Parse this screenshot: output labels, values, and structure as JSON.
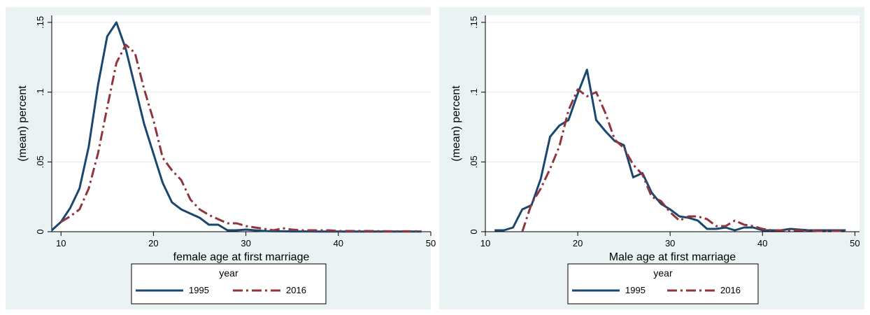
{
  "chart_data": [
    {
      "type": "line",
      "xlabel": "female age at first marriage",
      "ylabel": "(mean) percent",
      "xlim": [
        9,
        50
      ],
      "ylim": [
        0,
        0.155
      ],
      "xticks": [
        10,
        20,
        30,
        40,
        50
      ],
      "xtick_labels": [
        "10",
        "20",
        "30",
        "40",
        "50"
      ],
      "yticks": [
        0,
        0.05,
        0.1,
        0.15
      ],
      "ytick_labels": [
        "0",
        ".05",
        ".1",
        ".15"
      ],
      "grid": true,
      "legend": {
        "title": "year",
        "placement": "bottom"
      },
      "series": [
        {
          "name": "1995",
          "color": "#1a476f",
          "dash": "solid",
          "x": [
            9,
            10,
            11,
            12,
            13,
            14,
            15,
            16,
            17,
            18,
            19,
            20,
            21,
            22,
            23,
            24,
            25,
            26,
            27,
            28,
            29,
            30,
            31,
            32,
            33,
            34,
            35,
            36,
            37,
            38,
            39,
            40,
            41,
            42,
            43,
            44,
            45,
            46,
            47,
            48,
            49
          ],
          "y": [
            0.001,
            0.007,
            0.017,
            0.031,
            0.061,
            0.105,
            0.14,
            0.15,
            0.131,
            0.104,
            0.077,
            0.056,
            0.035,
            0.021,
            0.016,
            0.013,
            0.01,
            0.005,
            0.005,
            0.001,
            0.001,
            0.0015,
            0.001,
            0.0005,
            0.0003,
            0.0003,
            0.0002,
            0.0002,
            0.0002,
            0.0001,
            0.0001,
            0.0001,
            0.0001,
            0.0001,
            0.0001,
            0.0001,
            0.0001,
            0.0001,
            0.0001,
            0.0001,
            0.0001
          ]
        },
        {
          "name": "2016",
          "color": "#90353b",
          "dash": "dash-dot",
          "x": [
            10,
            11,
            12,
            13,
            14,
            15,
            16,
            17,
            18,
            19,
            20,
            21,
            22,
            23,
            24,
            25,
            26,
            27,
            28,
            29,
            30,
            31,
            32,
            33,
            34,
            35,
            36,
            37,
            38,
            39,
            40,
            41,
            42,
            43,
            44,
            45,
            46,
            47,
            48,
            49
          ],
          "y": [
            0.007,
            0.011,
            0.016,
            0.031,
            0.056,
            0.089,
            0.121,
            0.134,
            0.128,
            0.102,
            0.08,
            0.053,
            0.044,
            0.037,
            0.023,
            0.016,
            0.012,
            0.009,
            0.006,
            0.006,
            0.004,
            0.003,
            0.002,
            0.001,
            0.0025,
            0.0015,
            0.001,
            0.001,
            0.001,
            0.001,
            0.0005,
            0.0005,
            0.0005,
            0.0005,
            0.0004,
            0.0004,
            0.0003,
            0.0003,
            0.0003,
            0.0003
          ]
        }
      ]
    },
    {
      "type": "line",
      "xlabel": "Male age at first marriage",
      "ylabel": "(mean) percent",
      "xlim": [
        10,
        50.5
      ],
      "ylim": [
        0,
        0.155
      ],
      "xticks": [
        10,
        20,
        30,
        40,
        50
      ],
      "xtick_labels": [
        "10",
        "20",
        "30",
        "40",
        "50"
      ],
      "yticks": [
        0,
        0.05,
        0.1,
        0.15
      ],
      "ytick_labels": [
        "0",
        ".05",
        ".1",
        ".15"
      ],
      "grid": true,
      "legend": {
        "title": "year",
        "placement": "bottom"
      },
      "series": [
        {
          "name": "1995",
          "color": "#1a476f",
          "dash": "solid",
          "x": [
            11,
            12,
            13,
            14,
            15,
            16,
            17,
            18,
            19,
            20,
            21,
            22,
            23,
            24,
            25,
            26,
            27,
            28,
            29,
            30,
            31,
            32,
            33,
            34,
            35,
            36,
            37,
            38,
            39,
            40,
            41,
            42,
            43,
            44,
            45,
            46,
            47,
            48,
            49
          ],
          "y": [
            0.001,
            0.001,
            0.003,
            0.016,
            0.019,
            0.038,
            0.068,
            0.076,
            0.08,
            0.099,
            0.116,
            0.08,
            0.072,
            0.065,
            0.062,
            0.039,
            0.042,
            0.028,
            0.02,
            0.016,
            0.011,
            0.01,
            0.008,
            0.002,
            0.002,
            0.003,
            0.001,
            0.003,
            0.003,
            0.001,
            0.001,
            0.001,
            0.002,
            0.0015,
            0.001,
            0.001,
            0.001,
            0.001,
            0.001
          ]
        },
        {
          "name": "2016",
          "color": "#90353b",
          "dash": "dash-dot",
          "x": [
            14,
            15,
            16,
            17,
            18,
            19,
            20,
            21,
            22,
            23,
            24,
            25,
            26,
            27,
            28,
            29,
            30,
            31,
            32,
            33,
            34,
            35,
            36,
            37,
            38,
            39,
            40,
            41,
            42,
            43,
            44,
            45,
            46,
            47,
            48,
            49
          ],
          "y": [
            0.0,
            0.02,
            0.031,
            0.045,
            0.061,
            0.087,
            0.102,
            0.097,
            0.1,
            0.085,
            0.066,
            0.06,
            0.048,
            0.041,
            0.025,
            0.022,
            0.014,
            0.008,
            0.011,
            0.011,
            0.009,
            0.004,
            0.004,
            0.008,
            0.005,
            0.004,
            0.002,
            0.001,
            0.001,
            0.001,
            0.001,
            0.001,
            0.0005,
            0.0005,
            0.0005,
            0.0005
          ]
        }
      ]
    }
  ]
}
